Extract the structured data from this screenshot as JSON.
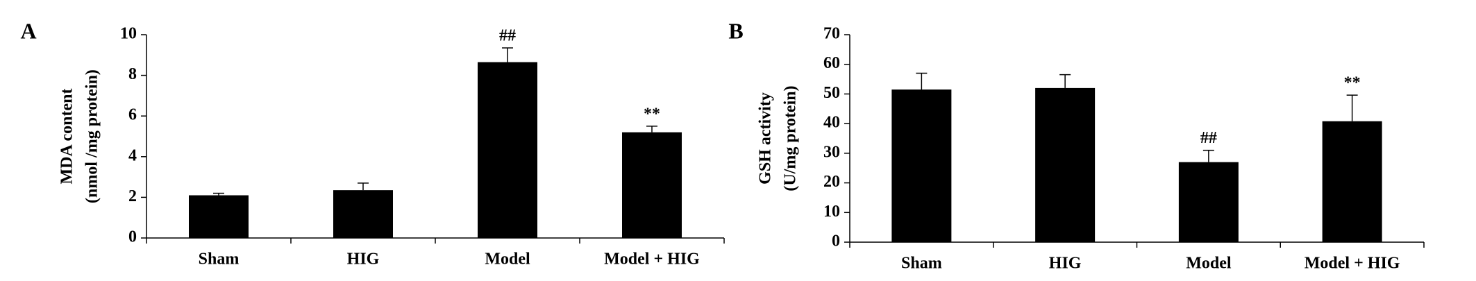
{
  "chart_data": [
    {
      "type": "bar",
      "panel": "A",
      "ylabel": [
        "MDA content",
        "(nmol /mg protein)"
      ],
      "categories": [
        "Sham",
        "HIG",
        "Model",
        "Model + HIG"
      ],
      "values": [
        2.1,
        2.35,
        8.65,
        5.2
      ],
      "errors": [
        0.1,
        0.35,
        0.7,
        0.3
      ],
      "value_annotations": [
        null,
        null,
        "##",
        "**"
      ],
      "color": "#000000",
      "ylim": [
        0,
        10
      ],
      "yticks": [
        0,
        2,
        4,
        6,
        8,
        10
      ]
    },
    {
      "type": "bar",
      "panel": "B",
      "ylabel": [
        "GSH activity",
        "(U/mg protein)"
      ],
      "categories": [
        "Sham",
        "HIG",
        "Model",
        "Model + HIG"
      ],
      "values": [
        51.5,
        52,
        27,
        40.8
      ],
      "errors": [
        5.5,
        4.5,
        4,
        8.8
      ],
      "value_annotations": [
        null,
        null,
        "##",
        "**"
      ],
      "color": "#000000",
      "ylim": [
        0,
        70
      ],
      "yticks": [
        0,
        10,
        20,
        30,
        40,
        50,
        60,
        70
      ]
    }
  ]
}
